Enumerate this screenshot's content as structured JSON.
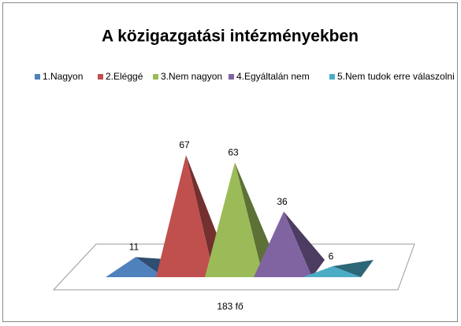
{
  "chart_data": {
    "type": "pyramid",
    "title": "A  közigazgatási intézményekben",
    "categories": [
      "1.Nagyon",
      "2.Eléggé",
      "3.Nem nagyon",
      "4.Egyáltalán nem",
      "5.Nem tudok erre válaszolni"
    ],
    "values": [
      11,
      67,
      63,
      36,
      6
    ],
    "colors": [
      "#4f81bd",
      "#c0504d",
      "#9bbb59",
      "#8064a2",
      "#4bacc6"
    ],
    "x_label": "183 fő",
    "ylim": [
      0,
      70
    ]
  }
}
